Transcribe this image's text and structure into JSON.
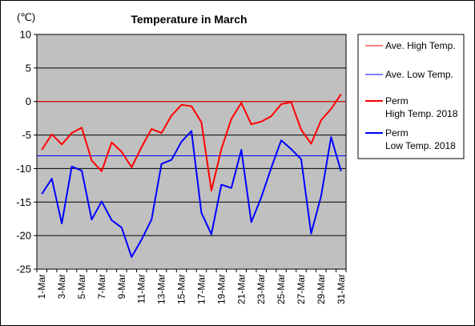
{
  "chart_data": {
    "type": "line",
    "title": "Temperature in March",
    "unit_label": "(℃)",
    "ylim": [
      -25,
      10
    ],
    "yticks": [
      10,
      5,
      0,
      -5,
      -10,
      -15,
      -20,
      -25
    ],
    "x": [
      1,
      2,
      3,
      4,
      5,
      6,
      7,
      8,
      9,
      10,
      11,
      12,
      13,
      14,
      15,
      16,
      17,
      18,
      19,
      20,
      21,
      22,
      23,
      24,
      25,
      26,
      27,
      28,
      29,
      30,
      31
    ],
    "xtick_labels": [
      "1-Mar",
      "3-Mar",
      "5-Mar",
      "7-Mar",
      "9-Mar",
      "11-Mar",
      "13-Mar",
      "15-Mar",
      "17-Mar",
      "19-Mar",
      "21-Mar",
      "23-Mar",
      "25-Mar",
      "27-Mar",
      "29-Mar",
      "31-Mar"
    ],
    "xtick_days": [
      1,
      3,
      5,
      7,
      9,
      11,
      13,
      15,
      17,
      19,
      21,
      23,
      25,
      27,
      29,
      31
    ],
    "grid": true,
    "legend_position": "right",
    "series": [
      {
        "name": "Ave. High Temp.",
        "color": "#ff0000",
        "width": 1,
        "constant": 0.0
      },
      {
        "name": "Ave. Low Temp.",
        "color": "#0000ff",
        "width": 1,
        "constant": -8.1
      },
      {
        "name": "Perm High Temp. 2018",
        "name_lines": [
          "Perm",
          "High Temp. 2018"
        ],
        "color": "#ff0000",
        "width": 2,
        "values": [
          -7.2,
          -4.9,
          -6.4,
          -4.7,
          -3.9,
          -8.8,
          -10.4,
          -6.1,
          -7.5,
          -9.8,
          -6.8,
          -4.1,
          -4.7,
          -2.1,
          -0.5,
          -0.7,
          -3.1,
          -13.3,
          -7.1,
          -2.6,
          -0.2,
          -3.4,
          -3.0,
          -2.2,
          -0.4,
          -0.1,
          -4.2,
          -6.3,
          -2.8,
          -1.1,
          1.1
        ]
      },
      {
        "name": "Perm Low Temp. 2018",
        "name_lines": [
          "Perm",
          "Low Temp. 2018"
        ],
        "color": "#0000ff",
        "width": 2,
        "values": [
          -13.8,
          -11.5,
          -18.2,
          -9.7,
          -10.3,
          -17.6,
          -14.9,
          -17.7,
          -18.8,
          -23.2,
          -20.6,
          -17.6,
          -9.3,
          -8.7,
          -6.0,
          -4.4,
          -16.6,
          -19.8,
          -12.4,
          -12.9,
          -7.2,
          -18.0,
          -14.3,
          -9.9,
          -5.8,
          -7.1,
          -8.6,
          -19.7,
          -14.1,
          -5.3,
          -10.4
        ]
      }
    ]
  }
}
